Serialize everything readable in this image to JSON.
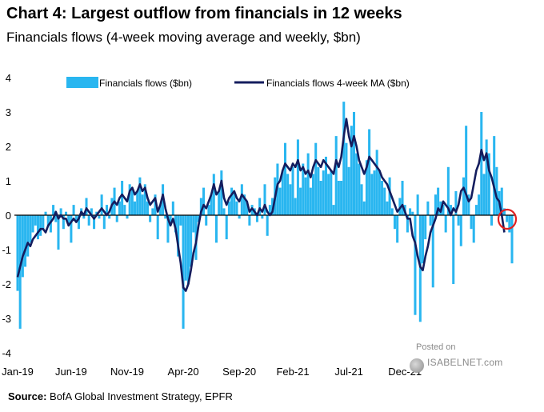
{
  "header": {
    "title": "Chart 4: Largest outflow from financials in 12 weeks",
    "subtitle": "Financials flows (4-week moving average and weekly, $bn)"
  },
  "footer": {
    "source_label": "Source:",
    "source_text": "BofA Global Investment Strategy, EPFR"
  },
  "watermark": {
    "posted": "Posted on",
    "site": "ISABELNET.com"
  },
  "chart_data": {
    "type": "bar",
    "ylim": [
      -4,
      4
    ],
    "yticks": [
      4,
      3,
      2,
      1,
      0,
      -1,
      -2,
      -3,
      -4
    ],
    "x_tick_labels": [
      "Jan-19",
      "Jun-19",
      "Nov-19",
      "Apr-20",
      "Sep-20",
      "Feb-21",
      "Jul-21",
      "Dec-21"
    ],
    "x_tick_week_index": [
      0,
      21,
      43,
      65,
      87,
      108,
      130,
      152
    ],
    "grid": false,
    "legend_position": "top",
    "series": [
      {
        "name": "Financials flows ($bn)",
        "kind": "bar",
        "color": "#29b6f0",
        "values": [
          -2.2,
          -3.3,
          -1.8,
          -1.5,
          -1.2,
          -0.8,
          -0.5,
          -0.3,
          -0.7,
          -0.6,
          -0.4,
          0.1,
          -0.3,
          -0.5,
          0.3,
          -0.2,
          -1.0,
          0.2,
          -0.4,
          0.1,
          -0.3,
          -0.8,
          0.3,
          -0.2,
          -0.4,
          0.2,
          -0.1,
          0.5,
          -0.3,
          0.2,
          -0.4,
          0.1,
          -0.1,
          0.6,
          -0.4,
          0.3,
          -0.1,
          0.5,
          0.8,
          -0.2,
          0.4,
          1.0,
          0.3,
          -0.1,
          0.9,
          0.8,
          0.4,
          0.7,
          1.1,
          0.6,
          0.9,
          0.4,
          -0.2,
          0.2,
          0.6,
          -0.7,
          0.3,
          0.9,
          -0.1,
          -0.8,
          -0.2,
          0.4,
          -0.5,
          -1.2,
          -0.3,
          -3.3,
          -1.9,
          -2.0,
          -1.5,
          -0.5,
          -1.3,
          -0.2,
          0.5,
          0.8,
          -0.3,
          0.3,
          0.6,
          1.2,
          -0.8,
          0.7,
          1.3,
          0.2,
          -0.7,
          0.4,
          0.8,
          0.7,
          0.4,
          -0.1,
          0.9,
          0.6,
          0.4,
          -0.3,
          0.3,
          0.2,
          -0.2,
          0.5,
          -0.1,
          0.9,
          -0.6,
          0.3,
          0.5,
          1.1,
          1.5,
          0.8,
          1.3,
          2.1,
          1.2,
          0.9,
          1.4,
          0.5,
          2.2,
          0.8,
          1.5,
          1.1,
          1.8,
          0.8,
          1.2,
          2.1,
          1.4,
          1.0,
          1.3,
          1.7,
          1.2,
          1.3,
          0.3,
          2.3,
          1.0,
          1.0,
          3.3,
          2.1,
          1.4,
          2.6,
          3.0,
          1.8,
          1.5,
          0.9,
          0.4,
          1.6,
          2.5,
          1.2,
          1.3,
          1.9,
          1.3,
          1.0,
          0.8,
          0.4,
          1.1,
          0.2,
          -0.4,
          -0.8,
          0.5,
          1.0,
          0.3,
          -0.5,
          0.2,
          0.1,
          -2.9,
          0.6,
          -3.1,
          -1.4,
          -0.7,
          0.4,
          -0.3,
          -2.1,
          0.6,
          0.8,
          0.4,
          0.3,
          -0.5,
          1.4,
          0.3,
          -2.0,
          0.7,
          -0.3,
          -0.9,
          1.1,
          2.6,
          0.6,
          -0.4,
          -0.8,
          0.3,
          0.6,
          3.0,
          1.2,
          2.2,
          1.8,
          -0.3,
          2.3,
          1.4,
          0.7,
          0.8,
          0.2,
          -0.2,
          -0.5,
          -1.4
        ]
      },
      {
        "name": "Financials flows 4-week MA ($bn)",
        "kind": "line",
        "color": "#141d5e",
        "values": [
          -1.8,
          -1.5,
          -1.2,
          -1.0,
          -0.8,
          -0.9,
          -0.7,
          -0.6,
          -0.5,
          -0.4,
          -0.4,
          -0.5,
          -0.3,
          -0.2,
          -0.1,
          0.1,
          -0.1,
          0.0,
          -0.1,
          -0.1,
          -0.3,
          -0.2,
          -0.1,
          -0.2,
          -0.1,
          0.1,
          0.0,
          0.2,
          0.1,
          0.0,
          -0.1,
          0.0,
          0.1,
          0.2,
          0.1,
          0.0,
          0.1,
          0.3,
          0.4,
          0.3,
          0.5,
          0.6,
          0.5,
          0.4,
          0.7,
          0.8,
          0.6,
          0.7,
          0.9,
          0.7,
          0.8,
          0.5,
          0.3,
          0.4,
          0.5,
          0.1,
          0.3,
          0.6,
          0.2,
          -0.1,
          -0.3,
          -0.1,
          -0.4,
          -0.9,
          -1.4,
          -2.1,
          -2.2,
          -2.0,
          -1.6,
          -1.1,
          -0.8,
          -0.3,
          0.1,
          0.3,
          0.2,
          0.4,
          0.6,
          0.9,
          0.6,
          0.7,
          1.0,
          0.5,
          0.3,
          0.5,
          0.6,
          0.7,
          0.5,
          0.4,
          0.6,
          0.5,
          0.4,
          0.1,
          0.2,
          0.1,
          0.0,
          0.2,
          0.1,
          0.3,
          0.1,
          0.0,
          0.1,
          0.5,
          0.9,
          1.0,
          1.3,
          1.5,
          1.4,
          1.3,
          1.5,
          1.4,
          1.6,
          1.3,
          1.4,
          1.2,
          1.3,
          1.1,
          1.4,
          1.6,
          1.5,
          1.4,
          1.6,
          1.5,
          1.4,
          1.3,
          1.2,
          1.6,
          1.4,
          1.7,
          2.3,
          2.8,
          2.3,
          2.0,
          2.3,
          2.0,
          1.6,
          1.4,
          1.2,
          1.4,
          1.7,
          1.6,
          1.5,
          1.4,
          1.3,
          1.1,
          1.0,
          0.9,
          0.7,
          0.5,
          0.3,
          0.1,
          0.2,
          0.3,
          0.1,
          -0.1,
          -0.1,
          -0.6,
          -0.8,
          -1.2,
          -1.5,
          -1.6,
          -1.2,
          -0.9,
          -0.5,
          -0.3,
          -0.1,
          0.2,
          0.1,
          0.4,
          0.3,
          0.2,
          0.0,
          0.2,
          0.1,
          0.3,
          0.7,
          0.8,
          0.6,
          0.4,
          0.5,
          0.9,
          1.3,
          1.5,
          1.9,
          1.6,
          1.8,
          1.3,
          1.1,
          0.8,
          0.5,
          0.4,
          0.0,
          -0.5
        ]
      }
    ],
    "annotation": {
      "type": "circle",
      "color": "#e02020",
      "target": "latest value"
    }
  }
}
